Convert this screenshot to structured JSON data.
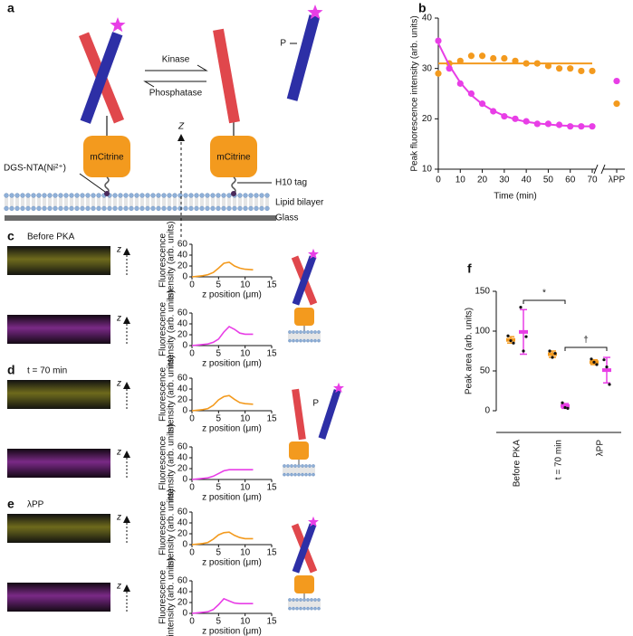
{
  "panel_labels": [
    "a",
    "b",
    "c",
    "d",
    "e",
    "f"
  ],
  "diagram": {
    "kinase": "Kinase",
    "phosphatase": "Phosphatase",
    "protein": "mCitrine",
    "phospho": "P",
    "z": "Z",
    "anchor": "DGS-NTA(Ni²⁺)",
    "tag": "H10 tag",
    "bilayer": "Lipid bilayer",
    "glass": "Glass",
    "image_axis": "z"
  },
  "chart_data": [
    {
      "type": "scatter_fit",
      "ylabel": "Peak fluorescence intensity (arb. units)",
      "xlabel": "Time (min)",
      "x": [
        0,
        5,
        10,
        15,
        20,
        25,
        30,
        35,
        40,
        45,
        50,
        55,
        60,
        65,
        70
      ],
      "xlim": [
        0,
        70
      ],
      "xticks": [
        0,
        10,
        20,
        30,
        40,
        50,
        60,
        70
      ],
      "ylim": [
        10,
        40
      ],
      "yticks": [
        10,
        20,
        30,
        40
      ],
      "break_label": "λPP",
      "series": [
        {
          "color": "#f39a1e",
          "values": [
            29,
            31,
            31.5,
            32.5,
            32.5,
            32,
            32,
            31.5,
            31,
            31,
            30.5,
            30,
            30,
            29.5,
            29.5
          ],
          "fit": [
            31,
            31,
            31,
            31,
            31,
            31,
            31,
            31,
            31,
            31,
            31,
            31,
            31,
            31,
            31
          ],
          "break_value": 23
        },
        {
          "color": "#e83ee6",
          "values": [
            35.5,
            30,
            27,
            25,
            23,
            21.5,
            20.5,
            20,
            19.5,
            19,
            19,
            18.8,
            18.5,
            18.5,
            18.5
          ],
          "fit": [
            35,
            30.6,
            27.2,
            24.7,
            22.9,
            21.6,
            20.6,
            19.9,
            19.4,
            19.1,
            18.9,
            18.7,
            18.6,
            18.5,
            18.5
          ],
          "break_value": 27.5
        }
      ]
    },
    {
      "type": "line",
      "ylabel": [
        "Fluorescence",
        "intensity (arb. units)"
      ],
      "xlabel": "z position (μm)",
      "x": [
        0,
        1,
        2,
        3,
        4,
        5,
        6,
        7,
        8,
        9,
        10,
        11.5
      ],
      "xlim": [
        0,
        15
      ],
      "xticks": [
        0,
        5,
        10,
        15
      ],
      "ylim": [
        0,
        60
      ],
      "yticks": [
        0,
        20,
        40,
        60
      ],
      "series": [
        {
          "color": "#f39a1e",
          "values": [
            0,
            1,
            2,
            4,
            8,
            16,
            25,
            27,
            20,
            16,
            14,
            13
          ]
        }
      ]
    },
    {
      "type": "line",
      "ylabel": [
        "Fluorescence",
        "intensity (arb. units)"
      ],
      "xlabel": "z position (μm)",
      "x": [
        0,
        1,
        2,
        3,
        4,
        5,
        6,
        7,
        8,
        9,
        10,
        11.5
      ],
      "xlim": [
        0,
        15
      ],
      "xticks": [
        0,
        5,
        10,
        15
      ],
      "ylim": [
        0,
        60
      ],
      "yticks": [
        0,
        20,
        40,
        60
      ],
      "series": [
        {
          "color": "#e83ee6",
          "values": [
            0,
            1,
            2,
            3,
            6,
            12,
            25,
            35,
            30,
            23,
            21,
            21
          ]
        }
      ]
    },
    {
      "type": "line",
      "ylabel": [
        "Fluorescence",
        "intensity (arb. units)"
      ],
      "xlabel": "z position (μm)",
      "x": [
        0,
        1,
        2,
        3,
        4,
        5,
        6,
        7,
        8,
        9,
        10,
        11.5
      ],
      "xlim": [
        0,
        15
      ],
      "xticks": [
        0,
        5,
        10,
        15
      ],
      "ylim": [
        0,
        60
      ],
      "yticks": [
        0,
        20,
        40,
        60
      ],
      "series": [
        {
          "color": "#f39a1e",
          "values": [
            0,
            1,
            2,
            4,
            10,
            20,
            26,
            28,
            21,
            15,
            13,
            12
          ]
        }
      ]
    },
    {
      "type": "line",
      "ylabel": [
        "Fluorescence",
        "intensity (arb. units)"
      ],
      "xlabel": "z position (μm)",
      "x": [
        0,
        1,
        2,
        3,
        4,
        5,
        6,
        7,
        8,
        9,
        10,
        11.5
      ],
      "xlim": [
        0,
        15
      ],
      "xticks": [
        0,
        5,
        10,
        15
      ],
      "ylim": [
        0,
        60
      ],
      "yticks": [
        0,
        20,
        40,
        60
      ],
      "series": [
        {
          "color": "#e83ee6",
          "values": [
            0,
            1,
            2,
            3,
            6,
            11,
            16,
            18,
            18,
            18,
            18,
            18
          ]
        }
      ]
    },
    {
      "type": "line",
      "ylabel": [
        "Fluorescence",
        "intensity (arb. units)"
      ],
      "xlabel": "z position (μm)",
      "x": [
        0,
        1,
        2,
        3,
        4,
        5,
        6,
        7,
        8,
        9,
        10,
        11.5
      ],
      "xlim": [
        0,
        15
      ],
      "xticks": [
        0,
        5,
        10,
        15
      ],
      "ylim": [
        0,
        60
      ],
      "yticks": [
        0,
        20,
        40,
        60
      ],
      "series": [
        {
          "color": "#f39a1e",
          "values": [
            0,
            1,
            2,
            4,
            10,
            18,
            22,
            23,
            17,
            13,
            11,
            11
          ]
        }
      ]
    },
    {
      "type": "line",
      "ylabel": [
        "Fluorescence",
        "intensity (arb. units)"
      ],
      "xlabel": "z position (μm)",
      "x": [
        0,
        1,
        2,
        3,
        4,
        5,
        6,
        7,
        8,
        9,
        10,
        11.5
      ],
      "xlim": [
        0,
        15
      ],
      "xticks": [
        0,
        5,
        10,
        15
      ],
      "ylim": [
        0,
        60
      ],
      "yticks": [
        0,
        20,
        40,
        60
      ],
      "series": [
        {
          "color": "#e83ee6",
          "values": [
            0,
            1,
            2,
            3,
            7,
            16,
            27,
            23,
            19,
            18,
            18,
            18
          ]
        }
      ]
    },
    {
      "type": "dot_sd",
      "ylabel": "Peak area (arb. units)",
      "categories": [
        "Before PKA",
        "t = 70 min",
        "λPP"
      ],
      "ylim": [
        0,
        150
      ],
      "yticks": [
        0,
        50,
        100,
        150
      ],
      "significance": [
        "*",
        "†"
      ],
      "series": [
        {
          "color": "#f39a1e",
          "points": [
            [
              94,
              88,
              85
            ],
            [
              75,
              67,
              72
            ],
            [
              65,
              61,
              58
            ]
          ],
          "means": [
            89,
            71,
            61
          ],
          "sd": [
            4,
            4,
            3
          ]
        },
        {
          "color": "#e83ee6",
          "points": [
            [
              130,
              75,
              93
            ],
            [
              10,
              4,
              3
            ],
            [
              64,
              55,
              33
            ]
          ],
          "means": [
            99,
            6,
            51
          ],
          "sd": [
            28,
            3,
            16
          ]
        }
      ]
    }
  ]
}
